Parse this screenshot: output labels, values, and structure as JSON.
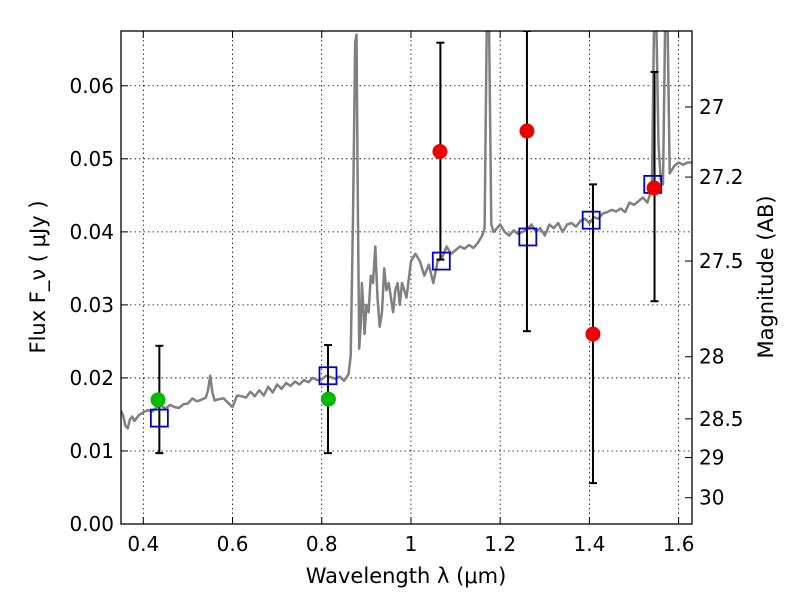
{
  "chart_data": {
    "type": "scatter",
    "xlabel": "Wavelength  λ (μm)",
    "ylabel": "Flux  F_ν  ( μJy )",
    "ylabel_right": "Magnitude (AB)",
    "xlim": [
      0.35,
      1.63
    ],
    "ylim": [
      0.0,
      0.0675
    ],
    "grid": true,
    "x_ticks": [
      {
        "value": 0.4,
        "label": "0.4"
      },
      {
        "value": 0.6,
        "label": "0.6"
      },
      {
        "value": 0.8,
        "label": "0.8"
      },
      {
        "value": 1.0,
        "label": "1"
      },
      {
        "value": 1.2,
        "label": "1.2"
      },
      {
        "value": 1.4,
        "label": "1.4"
      },
      {
        "value": 1.6,
        "label": "1.6"
      }
    ],
    "y_ticks": [
      {
        "value": 0.0,
        "label": "0.00"
      },
      {
        "value": 0.01,
        "label": "0.01"
      },
      {
        "value": 0.02,
        "label": "0.02"
      },
      {
        "value": 0.03,
        "label": "0.03"
      },
      {
        "value": 0.04,
        "label": "0.04"
      },
      {
        "value": 0.05,
        "label": "0.05"
      },
      {
        "value": 0.06,
        "label": "0.06"
      }
    ],
    "right_ticks": [
      {
        "flux": 0.0571,
        "label": "27"
      },
      {
        "flux": 0.0475,
        "label": "27.2"
      },
      {
        "flux": 0.036,
        "label": "27.5"
      },
      {
        "flux": 0.0229,
        "label": "28"
      },
      {
        "flux": 0.0144,
        "label": "28.5"
      },
      {
        "flux": 0.0091,
        "label": "29"
      },
      {
        "flux": 0.0036,
        "label": "30"
      }
    ],
    "colors": {
      "model": "#808080",
      "green": "#00bb00",
      "red": "#ee0000",
      "square": "#0000cc",
      "errorbar": "#000000"
    },
    "model_spectrum": {
      "x": [
        0.35,
        0.355,
        0.36,
        0.365,
        0.37,
        0.375,
        0.38,
        0.39,
        0.4,
        0.41,
        0.42,
        0.43,
        0.44,
        0.45,
        0.46,
        0.47,
        0.48,
        0.49,
        0.5,
        0.51,
        0.52,
        0.53,
        0.54,
        0.545,
        0.55,
        0.555,
        0.56,
        0.57,
        0.58,
        0.59,
        0.6,
        0.61,
        0.62,
        0.63,
        0.64,
        0.65,
        0.66,
        0.67,
        0.68,
        0.69,
        0.7,
        0.71,
        0.72,
        0.73,
        0.74,
        0.75,
        0.76,
        0.77,
        0.78,
        0.79,
        0.8,
        0.81,
        0.82,
        0.83,
        0.84,
        0.85,
        0.86,
        0.865,
        0.87,
        0.875,
        0.878,
        0.881,
        0.884,
        0.887,
        0.89,
        0.893,
        0.896,
        0.9,
        0.905,
        0.91,
        0.915,
        0.92,
        0.925,
        0.93,
        0.935,
        0.94,
        0.945,
        0.95,
        0.955,
        0.96,
        0.965,
        0.97,
        0.975,
        0.98,
        0.99,
        1.0,
        1.01,
        1.02,
        1.03,
        1.04,
        1.05,
        1.06,
        1.07,
        1.08,
        1.09,
        1.1,
        1.11,
        1.12,
        1.13,
        1.14,
        1.15,
        1.16,
        1.165,
        1.17,
        1.175,
        1.18,
        1.185,
        1.19,
        1.2,
        1.21,
        1.22,
        1.23,
        1.24,
        1.25,
        1.26,
        1.27,
        1.28,
        1.29,
        1.3,
        1.31,
        1.32,
        1.33,
        1.34,
        1.35,
        1.36,
        1.37,
        1.38,
        1.39,
        1.4,
        1.41,
        1.42,
        1.43,
        1.44,
        1.45,
        1.46,
        1.47,
        1.48,
        1.49,
        1.5,
        1.51,
        1.52,
        1.53,
        1.54,
        1.545,
        1.55,
        1.555,
        1.56,
        1.565,
        1.57,
        1.575,
        1.58,
        1.585,
        1.59,
        1.6,
        1.61,
        1.62,
        1.63
      ],
      "y": [
        0.0155,
        0.0148,
        0.0134,
        0.0131,
        0.0143,
        0.0147,
        0.0141,
        0.0149,
        0.0153,
        0.0156,
        0.0154,
        0.016,
        0.0162,
        0.0158,
        0.0163,
        0.016,
        0.0159,
        0.0164,
        0.0165,
        0.0172,
        0.0168,
        0.017,
        0.0173,
        0.0183,
        0.0203,
        0.018,
        0.0169,
        0.0171,
        0.0172,
        0.0166,
        0.016,
        0.0176,
        0.0175,
        0.0173,
        0.0181,
        0.0175,
        0.0183,
        0.0176,
        0.0188,
        0.018,
        0.0191,
        0.0185,
        0.0193,
        0.0189,
        0.0195,
        0.0191,
        0.0197,
        0.0194,
        0.02,
        0.0197,
        0.0198,
        0.0203,
        0.0201,
        0.0199,
        0.0202,
        0.0196,
        0.0205,
        0.023,
        0.042,
        0.066,
        0.067,
        0.043,
        0.024,
        0.027,
        0.033,
        0.03,
        0.026,
        0.03,
        0.029,
        0.034,
        0.033,
        0.038,
        0.031,
        0.027,
        0.029,
        0.035,
        0.032,
        0.033,
        0.031,
        0.029,
        0.032,
        0.033,
        0.03,
        0.033,
        0.031,
        0.036,
        0.037,
        0.036,
        0.034,
        0.0355,
        0.033,
        0.036,
        0.0365,
        0.038,
        0.037,
        0.0375,
        0.038,
        0.0377,
        0.0382,
        0.0378,
        0.0385,
        0.0395,
        0.0405,
        0.069,
        0.069,
        0.041,
        0.04,
        0.0403,
        0.041,
        0.04,
        0.0395,
        0.0402,
        0.0397,
        0.04,
        0.0403,
        0.041,
        0.04,
        0.0405,
        0.0395,
        0.041,
        0.0405,
        0.0412,
        0.04,
        0.041,
        0.0412,
        0.0407,
        0.0415,
        0.0418,
        0.0412,
        0.042,
        0.0418,
        0.0425,
        0.0427,
        0.043,
        0.0428,
        0.0432,
        0.0427,
        0.044,
        0.0437,
        0.0442,
        0.0447,
        0.044,
        0.046,
        0.069,
        0.069,
        0.052,
        0.047,
        0.0465,
        0.069,
        0.069,
        0.048,
        0.0485,
        0.049,
        0.0495,
        0.0492,
        0.0495,
        0.0495
      ]
    },
    "series": [
      {
        "color": "green",
        "marker": "circle",
        "x": [
          0.433,
          0.815
        ],
        "y": [
          0.017,
          0.0171
        ]
      },
      {
        "color": "red",
        "marker": "circle",
        "x": [
          1.065,
          1.26,
          1.408,
          1.545
        ],
        "y": [
          0.051,
          0.0538,
          0.026,
          0.046
        ]
      }
    ],
    "model_points": {
      "marker": "square",
      "x": [
        0.436,
        0.814,
        1.068,
        1.262,
        1.404,
        1.542
      ],
      "y": [
        0.0145,
        0.0203,
        0.036,
        0.0393,
        0.0416,
        0.0465
      ]
    },
    "error_bars": {
      "x": [
        0.436,
        0.814,
        1.066,
        1.26,
        1.408,
        1.546
      ],
      "low": [
        0.0097,
        0.0097,
        0.0362,
        0.0264,
        0.0056,
        0.0305
      ],
      "high": [
        0.0244,
        0.0245,
        0.0659,
        0.0675,
        0.0465,
        0.0619
      ]
    }
  }
}
